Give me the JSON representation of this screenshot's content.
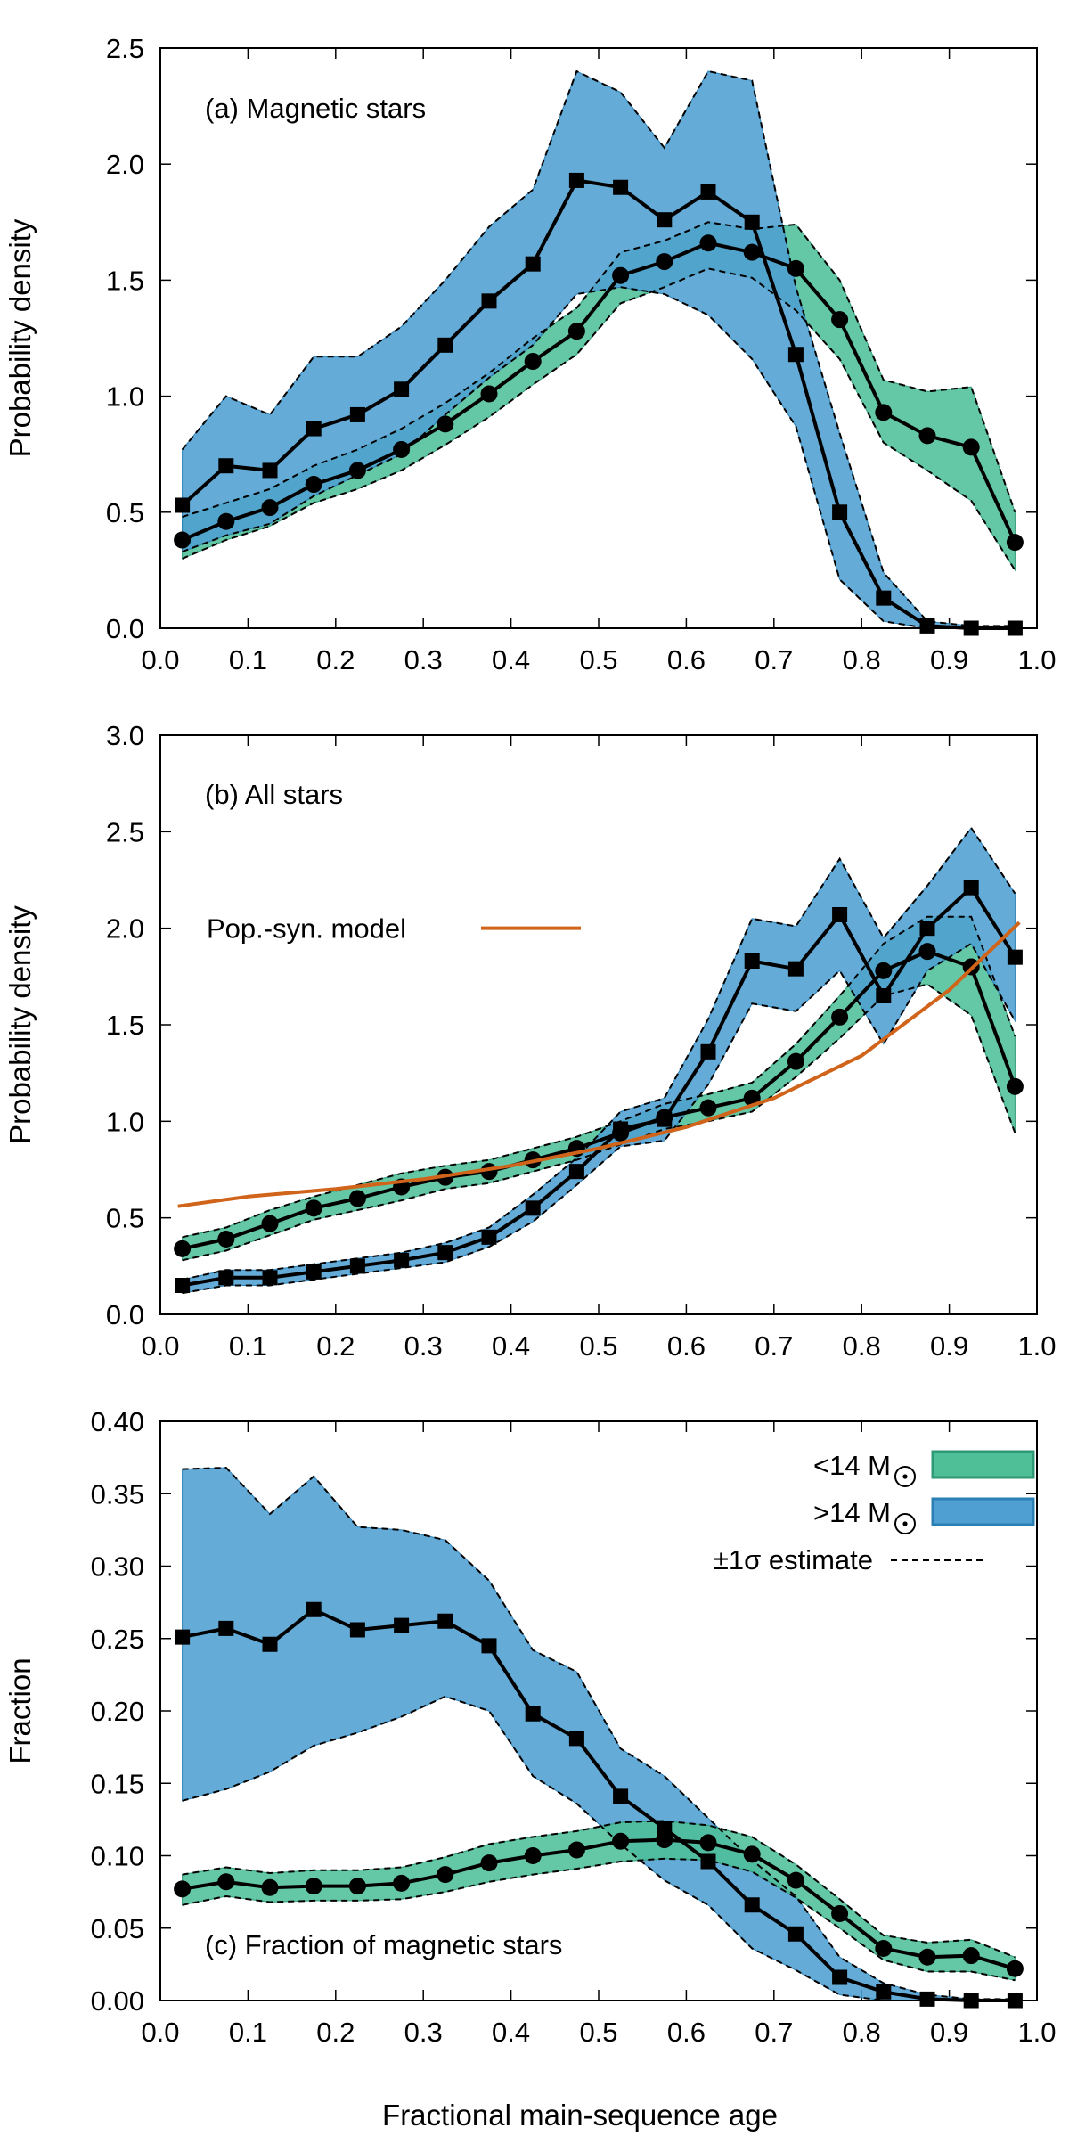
{
  "figure": {
    "xlabel": "Fractional main-sequence age",
    "colors": {
      "low_mass_fill": "#4fbf98",
      "low_mass_stroke": "#2f9a76",
      "high_mass_fill": "#4f9fd2",
      "high_mass_stroke": "#2a7fb5",
      "line": "#000000",
      "model": "#d0641a"
    },
    "legend": {
      "low_mass_label": "<14 M",
      "high_mass_label": ">14 M",
      "sigma_label": "±1σ estimate",
      "sun_symbol": "sun-symbol"
    }
  },
  "chart_data": [
    {
      "type": "line",
      "title": "(a) Magnetic stars",
      "xlabel": "",
      "ylabel": "Probability density",
      "xlim": [
        0.0,
        1.0
      ],
      "ylim": [
        0.0,
        2.5
      ],
      "x_ticks": [
        "0.0",
        "0.1",
        "0.2",
        "0.3",
        "0.4",
        "0.5",
        "0.6",
        "0.7",
        "0.8",
        "0.9",
        "1.0"
      ],
      "y_ticks": [
        "0.0",
        "0.5",
        "1.0",
        "1.5",
        "2.0",
        "2.5"
      ],
      "x": [
        0.025,
        0.075,
        0.125,
        0.175,
        0.225,
        0.275,
        0.325,
        0.375,
        0.425,
        0.475,
        0.525,
        0.575,
        0.625,
        0.675,
        0.725,
        0.775,
        0.825,
        0.875,
        0.925,
        0.975
      ],
      "series": [
        {
          "name": "<14 M☉",
          "marker": "circle",
          "values": [
            0.38,
            0.46,
            0.52,
            0.62,
            0.68,
            0.77,
            0.88,
            1.01,
            1.15,
            1.28,
            1.52,
            1.58,
            1.66,
            1.62,
            1.55,
            1.33,
            0.93,
            0.83,
            0.78,
            0.37
          ],
          "upper": [
            0.48,
            0.54,
            0.6,
            0.7,
            0.77,
            0.86,
            0.97,
            1.1,
            1.25,
            1.38,
            1.62,
            1.67,
            1.75,
            1.72,
            1.74,
            1.5,
            1.07,
            1.02,
            1.04,
            0.5
          ],
          "lower": [
            0.3,
            0.38,
            0.44,
            0.54,
            0.6,
            0.68,
            0.79,
            0.91,
            1.05,
            1.18,
            1.4,
            1.47,
            1.55,
            1.51,
            1.37,
            1.16,
            0.8,
            0.68,
            0.55,
            0.25
          ]
        },
        {
          "name": ">14 M☉",
          "marker": "square",
          "values": [
            0.53,
            0.7,
            0.68,
            0.86,
            0.92,
            1.03,
            1.22,
            1.41,
            1.57,
            1.93,
            1.9,
            1.76,
            1.88,
            1.75,
            1.18,
            0.5,
            0.13,
            0.01,
            0.0,
            0.0
          ],
          "upper": [
            0.77,
            1.0,
            0.92,
            1.17,
            1.17,
            1.3,
            1.5,
            1.73,
            1.89,
            2.4,
            2.31,
            2.07,
            2.4,
            2.36,
            1.47,
            0.84,
            0.24,
            0.03,
            0.01,
            0.01
          ],
          "lower": [
            0.33,
            0.4,
            0.45,
            0.57,
            0.66,
            0.75,
            0.92,
            1.08,
            1.22,
            1.44,
            1.47,
            1.44,
            1.35,
            1.16,
            0.87,
            0.21,
            0.03,
            0.0,
            0.0,
            0.0
          ]
        }
      ]
    },
    {
      "type": "line",
      "title": "(b) All stars",
      "xlabel": "",
      "ylabel": "Probability density",
      "xlim": [
        0.0,
        1.0
      ],
      "ylim": [
        0.0,
        3.0
      ],
      "x_ticks": [
        "0.0",
        "0.1",
        "0.2",
        "0.3",
        "0.4",
        "0.5",
        "0.6",
        "0.7",
        "0.8",
        "0.9",
        "1.0"
      ],
      "y_ticks": [
        "0.0",
        "0.5",
        "1.0",
        "1.5",
        "2.0",
        "2.5",
        "3.0"
      ],
      "x": [
        0.025,
        0.075,
        0.125,
        0.175,
        0.225,
        0.275,
        0.325,
        0.375,
        0.425,
        0.475,
        0.525,
        0.575,
        0.625,
        0.675,
        0.725,
        0.775,
        0.825,
        0.875,
        0.925,
        0.975
      ],
      "series": [
        {
          "name": "<14 M☉",
          "marker": "circle",
          "values": [
            0.34,
            0.39,
            0.47,
            0.55,
            0.6,
            0.66,
            0.71,
            0.74,
            0.8,
            0.86,
            0.94,
            1.02,
            1.07,
            1.12,
            1.31,
            1.54,
            1.78,
            1.88,
            1.8,
            1.18
          ],
          "upper": [
            0.4,
            0.45,
            0.54,
            0.61,
            0.67,
            0.73,
            0.77,
            0.8,
            0.86,
            0.92,
            1.0,
            1.09,
            1.14,
            1.2,
            1.4,
            1.65,
            1.92,
            2.06,
            2.06,
            1.44
          ],
          "lower": [
            0.28,
            0.33,
            0.41,
            0.49,
            0.54,
            0.59,
            0.65,
            0.68,
            0.74,
            0.8,
            0.88,
            0.96,
            1.0,
            1.05,
            1.23,
            1.43,
            1.65,
            1.71,
            1.55,
            0.94
          ]
        },
        {
          "name": ">14 M☉",
          "marker": "square",
          "values": [
            0.15,
            0.19,
            0.19,
            0.22,
            0.25,
            0.28,
            0.32,
            0.4,
            0.55,
            0.74,
            0.96,
            1.01,
            1.36,
            1.83,
            1.79,
            2.07,
            1.65,
            2.0,
            2.21,
            1.85
          ],
          "upper": [
            0.18,
            0.23,
            0.23,
            0.26,
            0.29,
            0.32,
            0.37,
            0.45,
            0.62,
            0.81,
            1.05,
            1.12,
            1.53,
            2.05,
            2.01,
            2.36,
            1.95,
            2.22,
            2.52,
            2.18
          ],
          "lower": [
            0.11,
            0.15,
            0.15,
            0.18,
            0.21,
            0.24,
            0.27,
            0.35,
            0.48,
            0.67,
            0.87,
            0.9,
            1.19,
            1.61,
            1.57,
            1.78,
            1.4,
            1.78,
            1.92,
            1.52
          ]
        },
        {
          "name": "Pop.-syn. model",
          "marker": "none",
          "x": [
            0.02,
            0.1,
            0.2,
            0.3,
            0.4,
            0.5,
            0.6,
            0.7,
            0.8,
            0.9,
            0.98
          ],
          "values": [
            0.56,
            0.61,
            0.65,
            0.7,
            0.77,
            0.86,
            0.97,
            1.12,
            1.34,
            1.68,
            2.03
          ]
        }
      ],
      "legend": {
        "label": "Pop.-syn. model",
        "position": "middle-left"
      }
    },
    {
      "type": "line",
      "title": "(c) Fraction of magnetic stars",
      "xlabel": "Fractional main-sequence age",
      "ylabel": "Fraction",
      "xlim": [
        0.0,
        1.0
      ],
      "ylim": [
        0.0,
        0.4
      ],
      "x_ticks": [
        "0.0",
        "0.1",
        "0.2",
        "0.3",
        "0.4",
        "0.5",
        "0.6",
        "0.7",
        "0.8",
        "0.9",
        "1.0"
      ],
      "y_ticks": [
        "0.00",
        "0.05",
        "0.10",
        "0.15",
        "0.20",
        "0.25",
        "0.30",
        "0.35",
        "0.40"
      ],
      "x": [
        0.025,
        0.075,
        0.125,
        0.175,
        0.225,
        0.275,
        0.325,
        0.375,
        0.425,
        0.475,
        0.525,
        0.575,
        0.625,
        0.675,
        0.725,
        0.775,
        0.825,
        0.875,
        0.925,
        0.975
      ],
      "series": [
        {
          "name": "<14 M☉",
          "marker": "circle",
          "values": [
            0.077,
            0.082,
            0.078,
            0.079,
            0.079,
            0.081,
            0.087,
            0.095,
            0.1,
            0.104,
            0.11,
            0.111,
            0.109,
            0.101,
            0.083,
            0.06,
            0.036,
            0.03,
            0.031,
            0.022
          ],
          "upper": [
            0.087,
            0.092,
            0.088,
            0.09,
            0.09,
            0.092,
            0.099,
            0.108,
            0.113,
            0.117,
            0.123,
            0.124,
            0.121,
            0.113,
            0.094,
            0.07,
            0.045,
            0.04,
            0.042,
            0.03
          ],
          "lower": [
            0.066,
            0.072,
            0.068,
            0.069,
            0.069,
            0.07,
            0.075,
            0.082,
            0.087,
            0.091,
            0.096,
            0.098,
            0.097,
            0.089,
            0.071,
            0.05,
            0.028,
            0.02,
            0.02,
            0.014
          ]
        },
        {
          "name": ">14 M☉",
          "marker": "square",
          "values": [
            0.251,
            0.257,
            0.246,
            0.27,
            0.256,
            0.259,
            0.262,
            0.245,
            0.198,
            0.181,
            0.141,
            0.119,
            0.096,
            0.066,
            0.046,
            0.016,
            0.006,
            0.001,
            0.0,
            0.0
          ],
          "upper": [
            0.367,
            0.368,
            0.336,
            0.362,
            0.327,
            0.325,
            0.318,
            0.29,
            0.242,
            0.227,
            0.174,
            0.155,
            0.126,
            0.097,
            0.072,
            0.03,
            0.012,
            0.004,
            0.001,
            0.001
          ],
          "lower": [
            0.138,
            0.146,
            0.158,
            0.176,
            0.185,
            0.196,
            0.21,
            0.2,
            0.155,
            0.136,
            0.108,
            0.083,
            0.066,
            0.036,
            0.021,
            0.004,
            0.0,
            0.0,
            0.0,
            0.0
          ]
        }
      ]
    }
  ]
}
